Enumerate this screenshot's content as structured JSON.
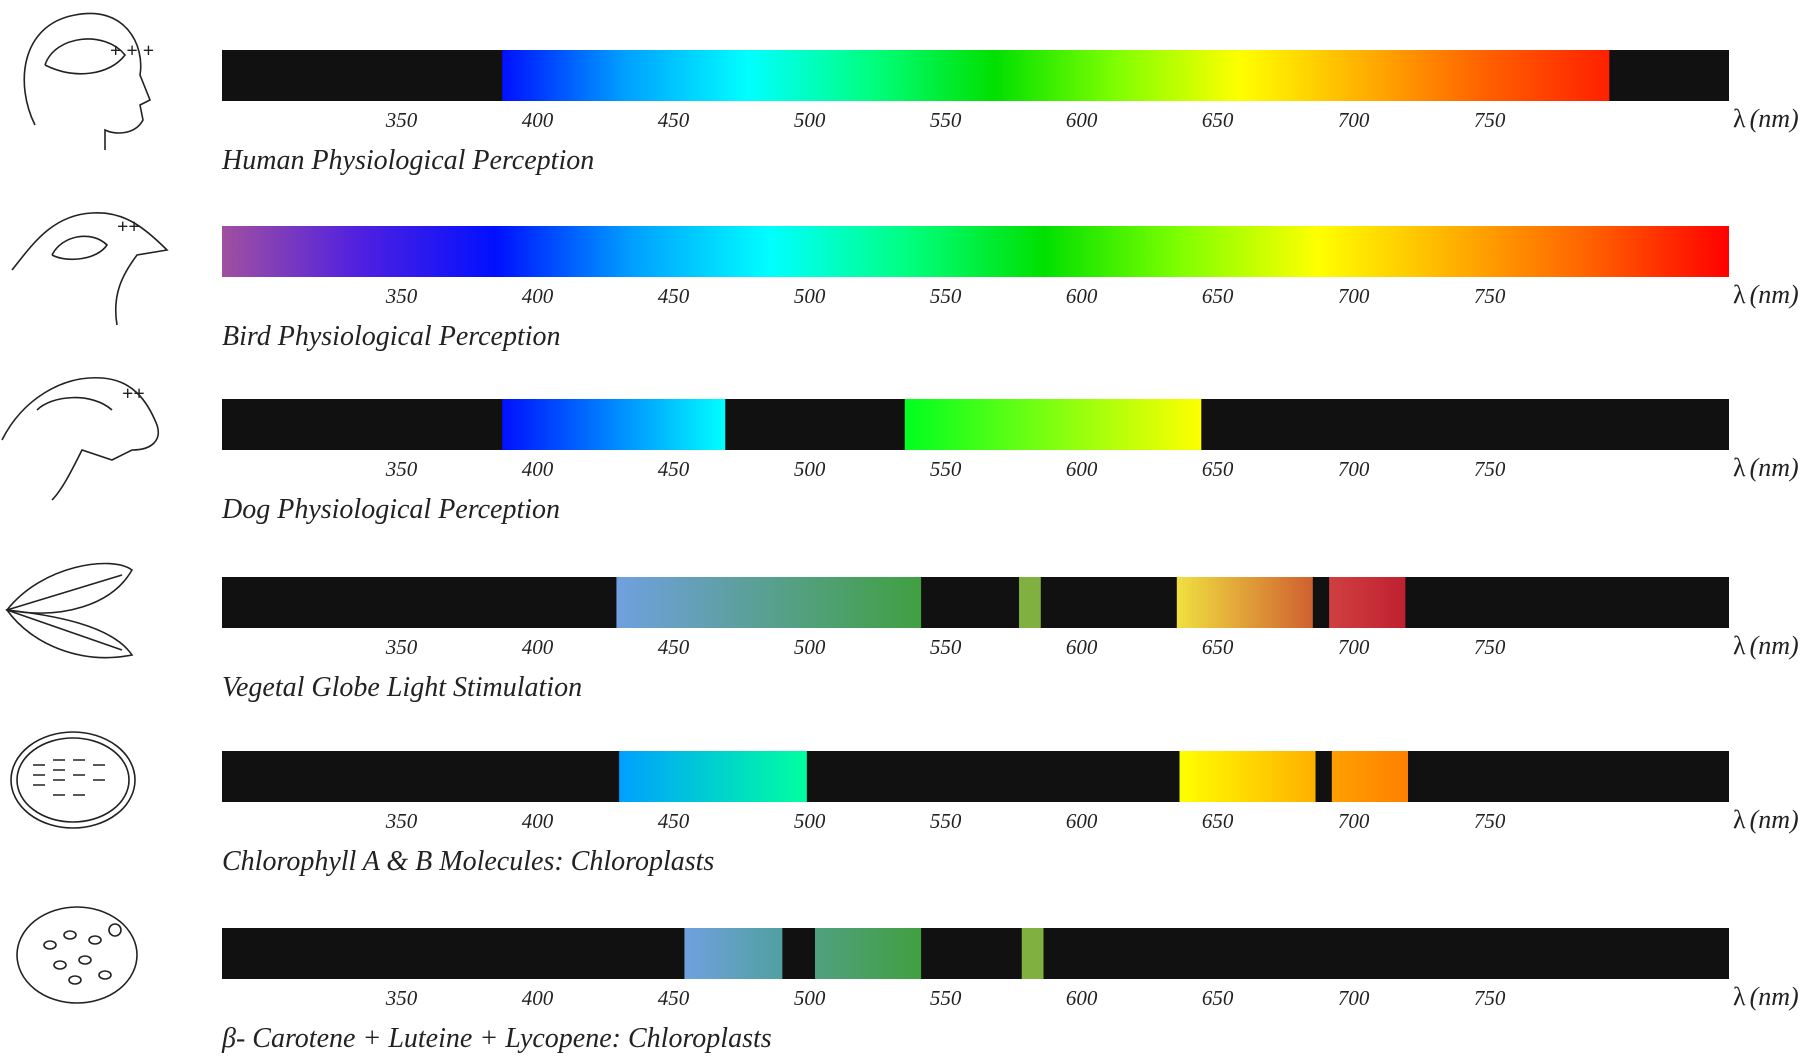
{
  "xlim": [
    284,
    838
  ],
  "ticks": [
    350,
    400,
    450,
    500,
    550,
    600,
    650,
    700,
    750
  ],
  "unit_symbol": "λ",
  "unit": "(nm)",
  "rows": [
    {
      "title": "Human Physiological Perception",
      "segments": [
        {
          "start": 387,
          "end": 794,
          "colors": [
            "#0010ff",
            "#00a0ff",
            "#00ffff",
            "#00ff80",
            "#00e000",
            "#80ff00",
            "#ffff00",
            "#ffb000",
            "#ff6000",
            "#ff2000"
          ]
        }
      ]
    },
    {
      "title": "Bird Physiological Perception",
      "segments": [
        {
          "start": 284,
          "end": 838,
          "colors": [
            "#a050a0",
            "#5020e0",
            "#0010ff",
            "#00a0ff",
            "#00ffff",
            "#00ff80",
            "#00e000",
            "#80ff00",
            "#ffff00",
            "#ffb000",
            "#ff6000",
            "#ff0000"
          ]
        }
      ]
    },
    {
      "title": "Dog Physiological Perception",
      "segments": [
        {
          "start": 387,
          "end": 469,
          "colors": [
            "#0010ff",
            "#00ffff"
          ]
        },
        {
          "start": 535,
          "end": 644,
          "colors": [
            "#00ff20",
            "#ffff00"
          ]
        }
      ]
    },
    {
      "title": "Vegetal Globe Light Stimulation",
      "segments": [
        {
          "start": 429,
          "end": 541,
          "colors": [
            "#70a0e0",
            "#40a040"
          ]
        },
        {
          "start": 577,
          "end": 585,
          "colors": [
            "#80b040",
            "#80b040"
          ]
        },
        {
          "start": 635,
          "end": 685,
          "colors": [
            "#f0e040",
            "#d06030"
          ]
        },
        {
          "start": 691,
          "end": 719,
          "colors": [
            "#d04040",
            "#c02030"
          ]
        }
      ]
    },
    {
      "title": "Chlorophyll A & B Molecules: Chloroplasts",
      "segments": [
        {
          "start": 430,
          "end": 499,
          "colors": [
            "#00a0ff",
            "#00ffa0"
          ]
        },
        {
          "start": 636,
          "end": 686,
          "colors": [
            "#ffff00",
            "#ffb000"
          ]
        },
        {
          "start": 692,
          "end": 720,
          "colors": [
            "#ffa000",
            "#ff8000"
          ]
        }
      ]
    },
    {
      "title": "β- Carotene + Luteine + Lycopene: Chloroplasts",
      "segments": [
        {
          "start": 454,
          "end": 490,
          "colors": [
            "#70a0e0",
            "#50a0a0"
          ]
        },
        {
          "start": 502,
          "end": 541,
          "colors": [
            "#50a080",
            "#40a040"
          ]
        },
        {
          "start": 578,
          "end": 586,
          "colors": [
            "#80b040",
            "#80b040"
          ]
        }
      ]
    }
  ]
}
